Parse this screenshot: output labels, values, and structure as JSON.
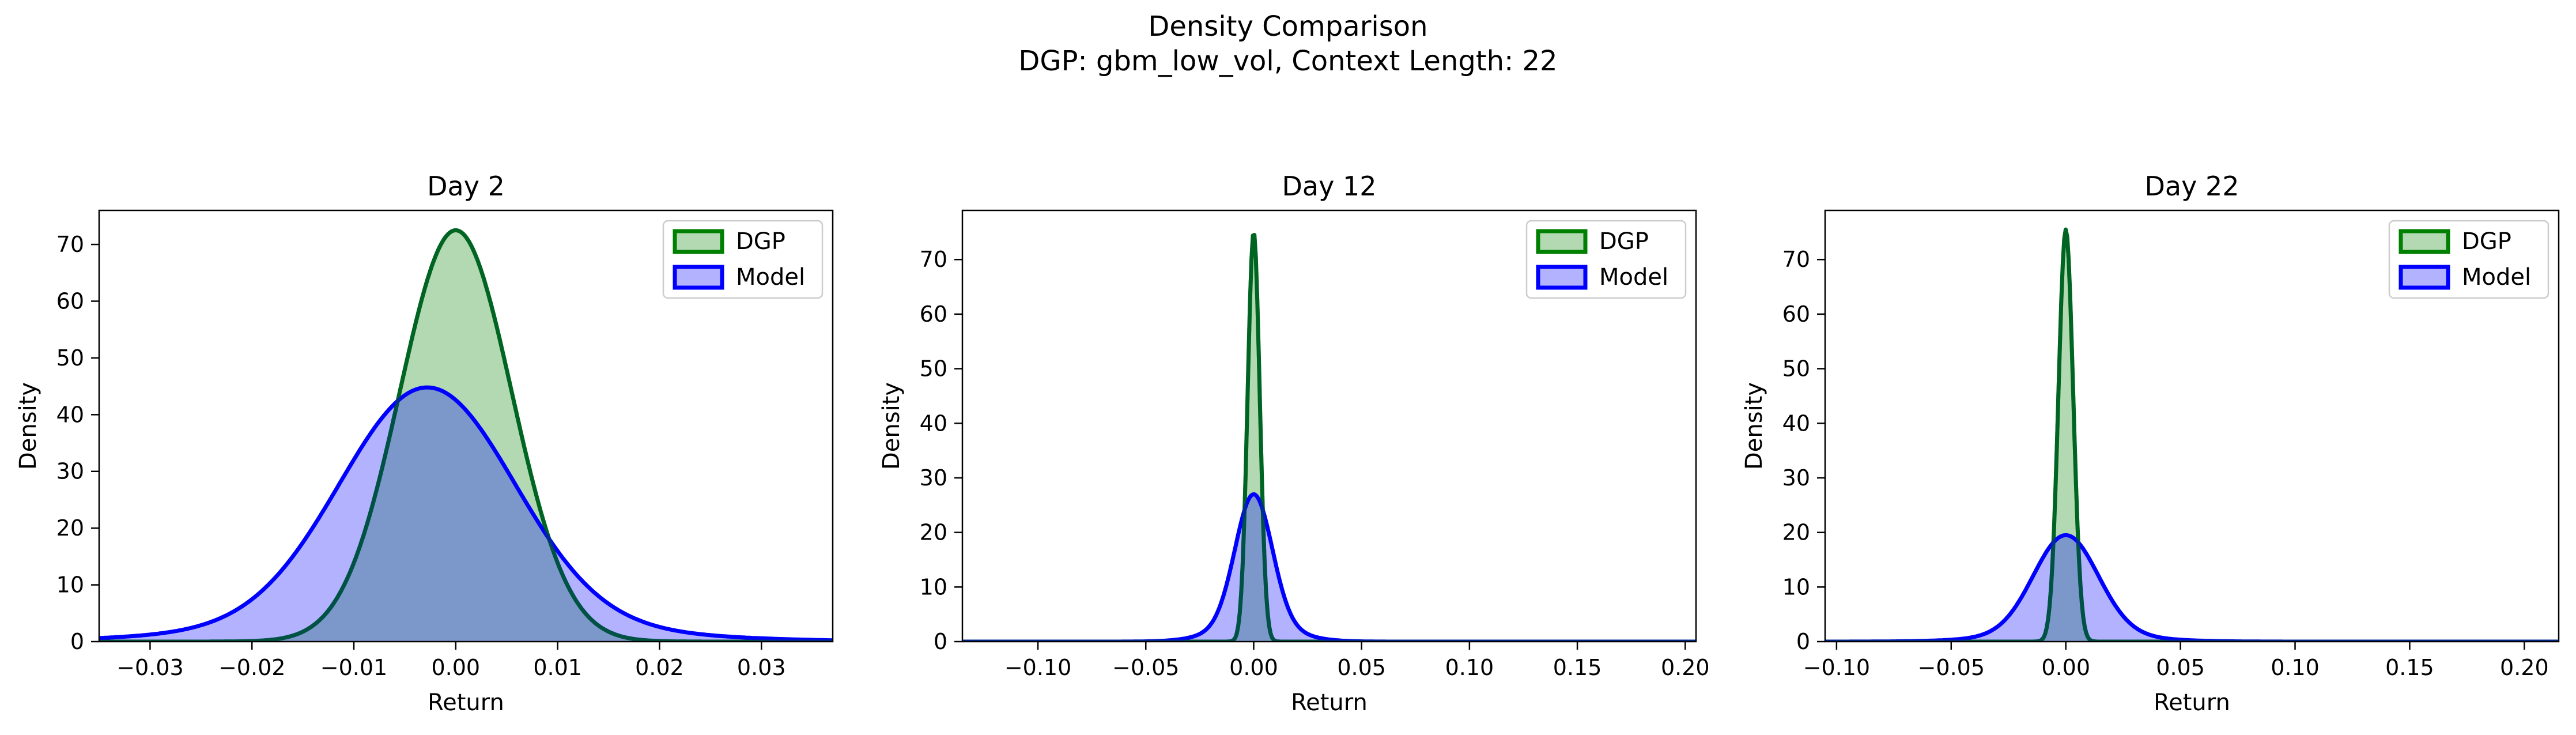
{
  "figure": {
    "title_line1": "Density Comparison",
    "title_line2": "DGP: gbm_low_vol, Context Length: 22"
  },
  "colors": {
    "dgp_line": "#008000",
    "dgp_fill": "#7fc97f",
    "model_line": "#0000ff",
    "model_fill": "#8080ff",
    "overlap_fill": "#7f99c7"
  },
  "chart_data": [
    {
      "type": "area",
      "title": "Day 2",
      "xlabel": "Return",
      "ylabel": "Density",
      "xlim": [
        -0.035,
        0.037
      ],
      "ylim": [
        0,
        76
      ],
      "xticks": [
        -0.03,
        -0.02,
        -0.01,
        0.0,
        0.01,
        0.02,
        0.03
      ],
      "xtick_labels": [
        "−0.03",
        "−0.02",
        "−0.01",
        "0.00",
        "0.01",
        "0.02",
        "0.03"
      ],
      "yticks": [
        0,
        10,
        20,
        30,
        40,
        50,
        60,
        70
      ],
      "legend": "upper right",
      "series": [
        {
          "name": "DGP",
          "mean": 0.0,
          "sd": 0.0055,
          "peak": 72.5
        },
        {
          "name": "Model",
          "mean": -0.0028,
          "sd": 0.0085,
          "peak": 44.8,
          "tail_weight": 0.08,
          "tail_sd_factor": 2.0
        }
      ]
    },
    {
      "type": "area",
      "title": "Day 12",
      "xlabel": "Return",
      "ylabel": "Density",
      "xlim": [
        -0.135,
        0.205
      ],
      "ylim": [
        0,
        79
      ],
      "xticks": [
        -0.1,
        -0.05,
        0.0,
        0.05,
        0.1,
        0.15,
        0.2
      ],
      "xtick_labels": [
        "−0.10",
        "−0.05",
        "0.00",
        "0.05",
        "0.10",
        "0.15",
        "0.20"
      ],
      "yticks": [
        0,
        10,
        20,
        30,
        40,
        50,
        60,
        70
      ],
      "legend": "upper right",
      "series": [
        {
          "name": "DGP",
          "mean": 0.0,
          "sd": 0.0028,
          "peak": 75.0
        },
        {
          "name": "Model",
          "mean": 0.0,
          "sd": 0.0085,
          "peak": 27.0,
          "tail_weight": 0.12,
          "tail_sd_factor": 2.0
        }
      ]
    },
    {
      "type": "area",
      "title": "Day 22",
      "xlabel": "Return",
      "ylabel": "Density",
      "xlim": [
        -0.105,
        0.215
      ],
      "ylim": [
        0,
        79
      ],
      "xticks": [
        -0.1,
        -0.05,
        0.0,
        0.05,
        0.1,
        0.15,
        0.2
      ],
      "xtick_labels": [
        "−0.10",
        "−0.05",
        "0.00",
        "0.05",
        "0.10",
        "0.15",
        "0.20"
      ],
      "yticks": [
        0,
        10,
        20,
        30,
        40,
        50,
        60,
        70
      ],
      "legend": "upper right",
      "series": [
        {
          "name": "DGP",
          "mean": 0.0,
          "sd": 0.0032,
          "peak": 75.5
        },
        {
          "name": "Model",
          "mean": 0.0,
          "sd": 0.014,
          "peak": 19.5,
          "tail_weight": 0.08,
          "tail_sd_factor": 2.0
        }
      ]
    }
  ]
}
